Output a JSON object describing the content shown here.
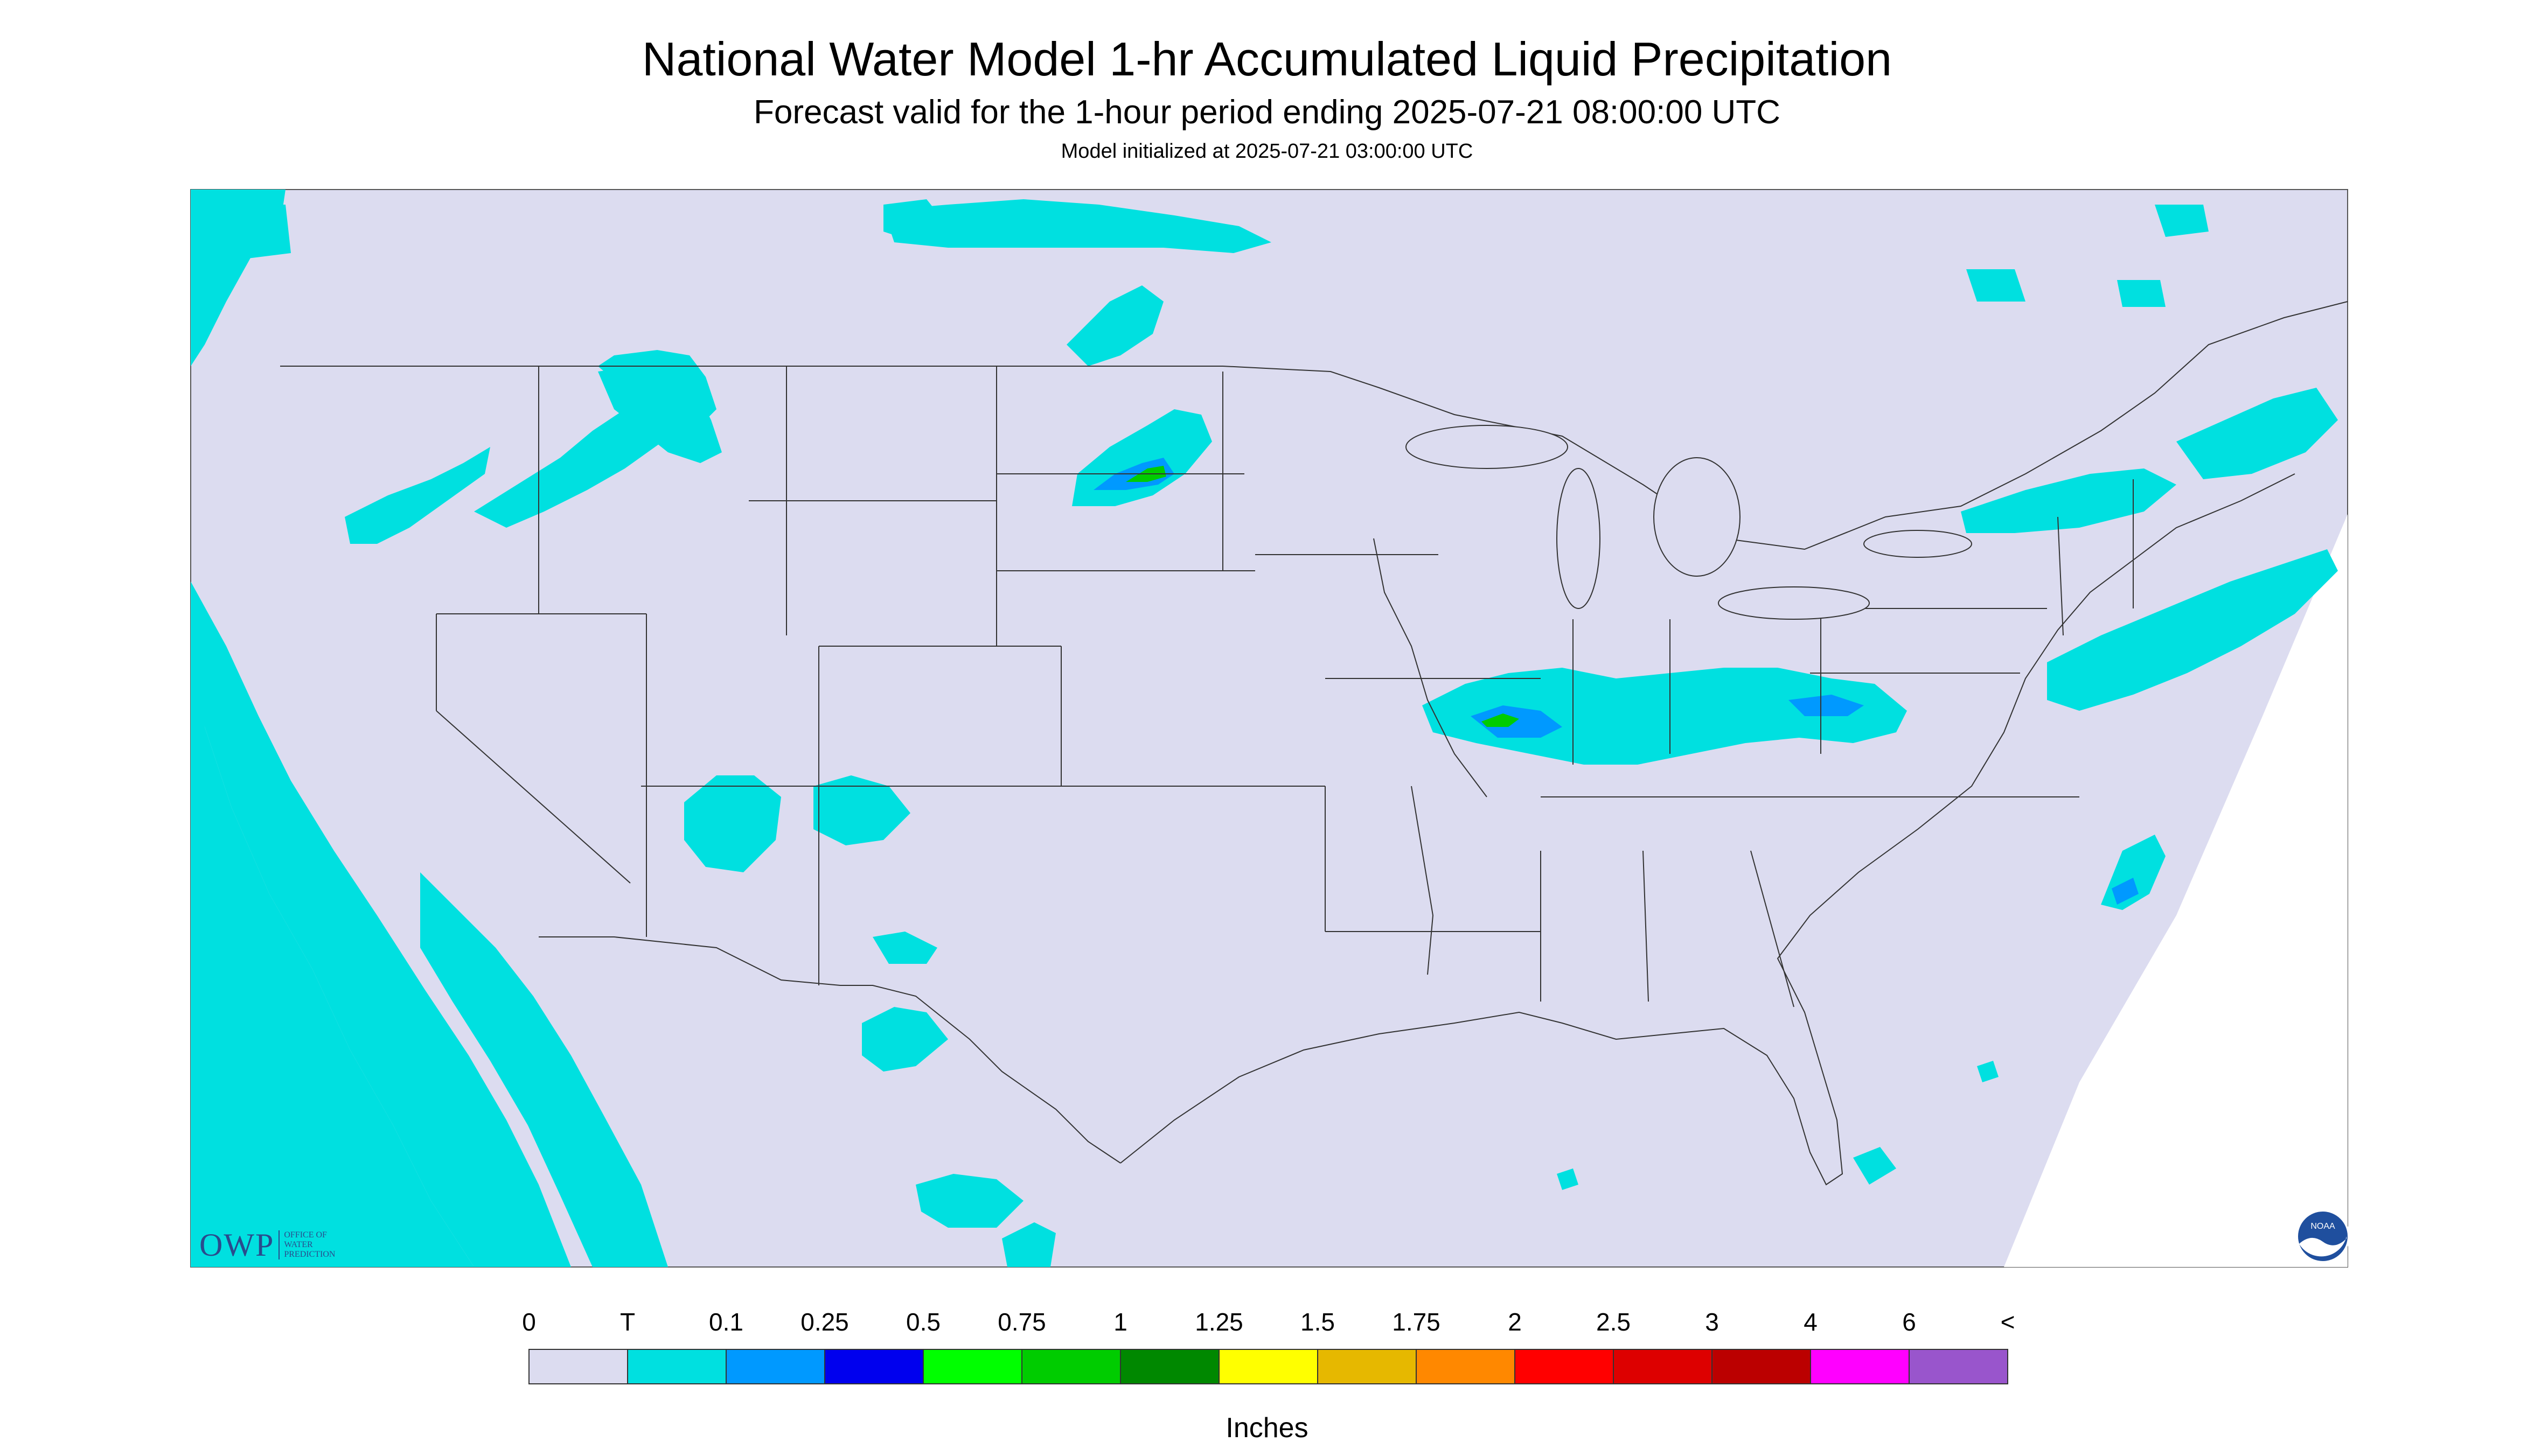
{
  "title": "National Water Model 1-hr Accumulated Liquid Precipitation",
  "subtitle": "Forecast valid for the 1-hour period ending 2025-07-21 08:00:00 UTC",
  "initialized": "Model initialized at 2025-07-21 03:00:00 UTC",
  "legend": {
    "labels": [
      "0",
      "T",
      "0.1",
      "0.25",
      "0.5",
      "0.75",
      "1",
      "1.25",
      "1.5",
      "1.75",
      "2",
      "2.5",
      "3",
      "4",
      "6",
      "<"
    ],
    "colors": [
      "#dcdcf0",
      "#00e0e0",
      "#0099ff",
      "#0000ee",
      "#00ff00",
      "#00cc00",
      "#008800",
      "#ffff00",
      "#e6b800",
      "#ff8800",
      "#ff0000",
      "#dd0000",
      "#bb0000",
      "#ff00ff",
      "#9955cc"
    ],
    "units": "Inches"
  },
  "logos": {
    "owp": "OWP",
    "owp_sub": [
      "OFFICE OF",
      "WATER",
      "PREDICTION"
    ],
    "noaa": "NOAA"
  },
  "map": {
    "background": "#dcdcf0",
    "no_data": "#ffffff",
    "trace_color": "#00e0e0"
  }
}
